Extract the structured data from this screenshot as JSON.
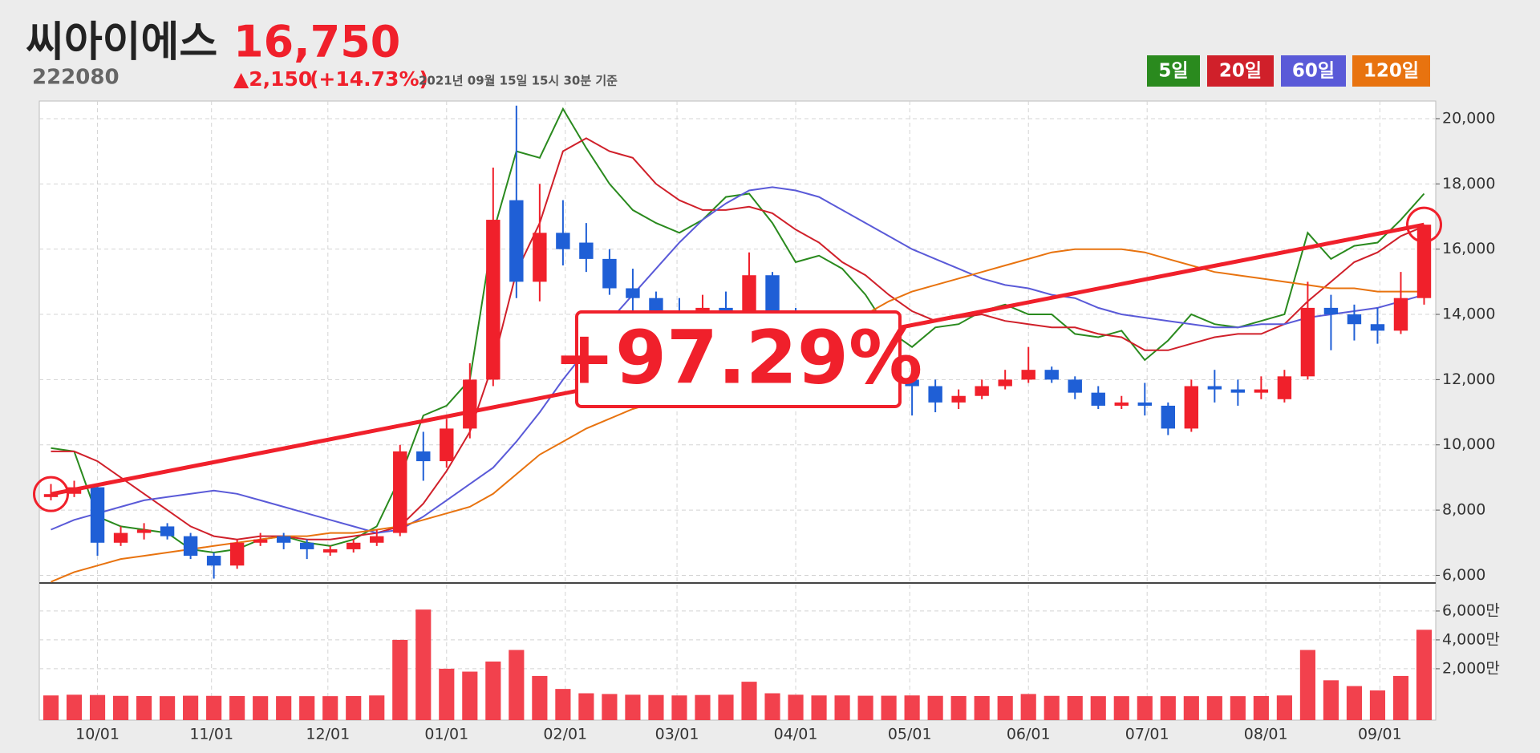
{
  "chart_data": {
    "type": "candlestick",
    "title": "씨아이에스",
    "price": "16,750",
    "code": "222080",
    "change": "▲2,150",
    "change_pct": "(+14.73%)",
    "timestamp": "2021년 09월 15일 15시 30분 기준",
    "annotation": "+97.29%",
    "up_color": "#f0202b",
    "down_color": "#1f5fd6",
    "open": [
      8400,
      8500,
      8700,
      7000,
      7300,
      7500,
      7200,
      6600,
      6300,
      7000,
      7200,
      7000,
      6700,
      6800,
      7000,
      7300,
      9800,
      9500,
      10500,
      12000,
      17500,
      15000,
      16500,
      16200,
      15700,
      14800,
      14500,
      13800,
      13500,
      14200,
      14100,
      15200,
      14000,
      13500,
      13000,
      12800,
      12500,
      12000,
      11800,
      11300,
      11500,
      11800,
      12000,
      12300,
      12000,
      11600,
      11200,
      11300,
      11200,
      10500,
      11800,
      11700,
      11600,
      11400,
      12100,
      14200,
      14000,
      13700,
      13500,
      14500
    ],
    "high": [
      8800,
      8900,
      8800,
      7500,
      7600,
      7600,
      7300,
      6700,
      7100,
      7300,
      7300,
      7100,
      6900,
      7100,
      7400,
      10000,
      10400,
      10800,
      12500,
      18500,
      20400,
      18000,
      17500,
      16800,
      16000,
      15400,
      14700,
      14500,
      14600,
      14700,
      15900,
      15300,
      14200,
      13700,
      13300,
      13100,
      12700,
      12200,
      12000,
      11700,
      12000,
      12300,
      13000,
      12400,
      12100,
      11800,
      11500,
      11900,
      11300,
      12000,
      12300,
      12000,
      12100,
      12300,
      15000,
      14600,
      14300,
      14200,
      15300,
      16750
    ],
    "low": [
      8300,
      8400,
      6600,
      6900,
      7100,
      7100,
      6500,
      5900,
      6200,
      6900,
      6800,
      6500,
      6600,
      6700,
      6900,
      7200,
      8900,
      9300,
      10200,
      11800,
      14500,
      14400,
      15500,
      15300,
      14600,
      14000,
      13500,
      13300,
      13400,
      13800,
      14000,
      13800,
      13200,
      12800,
      12600,
      12300,
      11800,
      10900,
      11000,
      11100,
      11400,
      11700,
      11900,
      11900,
      11400,
      11100,
      11100,
      10900,
      10300,
      10400,
      11300,
      11200,
      11400,
      11300,
      12000,
      12900,
      13200,
      13100,
      13400,
      14300
    ],
    "close": [
      8490,
      8700,
      7000,
      7300,
      7400,
      7200,
      6600,
      6300,
      7000,
      7100,
      7000,
      6800,
      6800,
      7000,
      7200,
      9800,
      9500,
      10500,
      12000,
      16900,
      15000,
      16500,
      16000,
      15700,
      14800,
      14500,
      13800,
      13500,
      14200,
      14100,
      15200,
      14000,
      13500,
      13000,
      12800,
      12500,
      12000,
      11800,
      11300,
      11500,
      11800,
      12000,
      12300,
      12000,
      11600,
      11200,
      11300,
      11200,
      10500,
      11800,
      11700,
      11600,
      11700,
      12100,
      14200,
      14000,
      13700,
      13500,
      14500,
      16750
    ],
    "ylim": [
      5790,
      20540
    ],
    "yticks": [
      {
        "value": 6000,
        "label": "6,000"
      },
      {
        "value": 8000,
        "label": "8,000"
      },
      {
        "value": 10000,
        "label": "10,000"
      },
      {
        "value": 12000,
        "label": "12,000"
      },
      {
        "value": 14000,
        "label": "14,000"
      },
      {
        "value": 16000,
        "label": "16,000"
      },
      {
        "value": 18000,
        "label": "18,000"
      },
      {
        "value": 20000,
        "label": "20,000"
      }
    ],
    "xticks": [
      {
        "value": 2,
        "label": "10/01"
      },
      {
        "value": 6.9,
        "label": "11/01"
      },
      {
        "value": 11.9,
        "label": "12/01"
      },
      {
        "value": 17,
        "label": "01/01"
      },
      {
        "value": 22.1,
        "label": "02/01"
      },
      {
        "value": 26.9,
        "label": "03/01"
      },
      {
        "value": 32,
        "label": "04/01"
      },
      {
        "value": 36.9,
        "label": "05/01"
      },
      {
        "value": 42,
        "label": "06/01"
      },
      {
        "value": 47.1,
        "label": "07/01"
      },
      {
        "value": 52.2,
        "label": "08/01"
      },
      {
        "value": 57.1,
        "label": "09/01"
      }
    ],
    "grid": true,
    "series": [
      {
        "name": "5일",
        "color": "#2a8a1e",
        "values": [
          9900,
          9800,
          7800,
          7500,
          7400,
          7300,
          6800,
          6700,
          6800,
          7100,
          7200,
          7000,
          6900,
          7100,
          7500,
          9000,
          10900,
          11200,
          12000,
          16500,
          19000,
          18800,
          20300,
          19100,
          18000,
          17200,
          16800,
          16500,
          16900,
          17600,
          17700,
          16800,
          15600,
          15800,
          15400,
          14600,
          13500,
          13000,
          13600,
          13700,
          14100,
          14300,
          14000,
          14000,
          13400,
          13300,
          13500,
          12600,
          13200,
          14000,
          13700,
          13600,
          13800,
          14000,
          16500,
          15700,
          16100,
          16200,
          16900,
          17700
        ]
      },
      {
        "name": "20일",
        "color": "#d0202a",
        "values": [
          9800,
          9800,
          9500,
          9000,
          8500,
          8000,
          7500,
          7200,
          7100,
          7200,
          7200,
          7100,
          7100,
          7200,
          7300,
          7500,
          8200,
          9200,
          10400,
          12500,
          15300,
          16800,
          19000,
          19400,
          19000,
          18800,
          18000,
          17500,
          17200,
          17200,
          17300,
          17100,
          16600,
          16200,
          15600,
          15200,
          14600,
          14100,
          13800,
          13900,
          14000,
          13800,
          13700,
          13600,
          13600,
          13400,
          13300,
          12900,
          12900,
          13100,
          13300,
          13400,
          13400,
          13700,
          14400,
          15000,
          15600,
          15900,
          16400,
          16700
        ]
      },
      {
        "name": "60일",
        "color": "#5a5ad8",
        "values": [
          7400,
          7700,
          7900,
          8100,
          8300,
          8400,
          8500,
          8600,
          8500,
          8300,
          8100,
          7900,
          7700,
          7500,
          7300,
          7400,
          7800,
          8300,
          8800,
          9300,
          10100,
          11000,
          12000,
          12900,
          13800,
          14600,
          15400,
          16200,
          16900,
          17400,
          17800,
          17900,
          17800,
          17600,
          17200,
          16800,
          16400,
          16000,
          15700,
          15400,
          15100,
          14900,
          14800,
          14600,
          14500,
          14200,
          14000,
          13900,
          13800,
          13700,
          13600,
          13600,
          13700,
          13700,
          13900,
          14000,
          14100,
          14200,
          14400,
          14600
        ]
      },
      {
        "name": "120일",
        "color": "#e8730f",
        "values": [
          5800,
          6100,
          6300,
          6500,
          6600,
          6700,
          6800,
          6900,
          7000,
          7100,
          7200,
          7200,
          7300,
          7300,
          7400,
          7500,
          7700,
          7900,
          8100,
          8500,
          9100,
          9700,
          10100,
          10500,
          10800,
          11100,
          11300,
          11600,
          11800,
          12000,
          12200,
          12500,
          12800,
          13200,
          13600,
          14000,
          14400,
          14700,
          14900,
          15100,
          15300,
          15500,
          15700,
          15900,
          16000,
          16000,
          16000,
          15900,
          15700,
          15500,
          15300,
          15200,
          15100,
          15000,
          14900,
          14800,
          14800,
          14700,
          14700,
          14700
        ]
      }
    ],
    "volume": {
      "color": "#f2414d",
      "values": [
        150,
        200,
        180,
        120,
        110,
        100,
        130,
        120,
        110,
        100,
        100,
        100,
        100,
        110,
        150,
        4000,
        6100,
        2000,
        1800,
        2500,
        3300,
        1500,
        600,
        300,
        250,
        200,
        180,
        150,
        180,
        200,
        1100,
        300,
        200,
        150,
        150,
        130,
        130,
        150,
        120,
        110,
        110,
        110,
        250,
        120,
        110,
        100,
        100,
        100,
        100,
        100,
        100,
        100,
        110,
        150,
        3300,
        1200,
        800,
        500,
        1500,
        4700
      ],
      "ylim": [
        -1560,
        7830
      ],
      "yticks": [
        {
          "value": 2000,
          "label": "2,000만"
        },
        {
          "value": 4000,
          "label": "4,000만"
        },
        {
          "value": 6000,
          "label": "6,000만"
        }
      ]
    }
  }
}
